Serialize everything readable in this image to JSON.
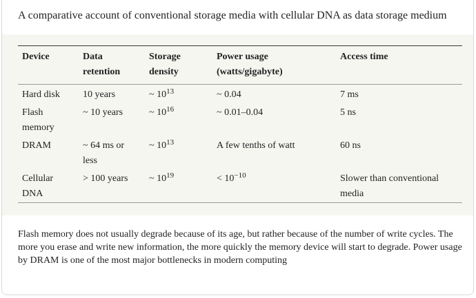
{
  "caption": "A comparative account of conventional storage media with cellular DNA as data storage medium",
  "headers": {
    "device": "Device",
    "retention": "Data retention",
    "density": "Storage density",
    "power": "Power usage (watts/gigabyte)",
    "access": "Access time"
  },
  "rows": [
    {
      "device": "Hard disk",
      "retention": "10 years",
      "density_prefix": "~ 10",
      "density_exp": "13",
      "power_prefix": "~ 0.04",
      "power_exp": "",
      "access": "7 ms"
    },
    {
      "device": "Flash memory",
      "retention": "~ 10 years",
      "density_prefix": "~ 10",
      "density_exp": "16",
      "power_prefix": "~ 0.01–0.04",
      "power_exp": "",
      "access": "5 ns"
    },
    {
      "device": "DRAM",
      "retention": "~ 64 ms or less",
      "density_prefix": "~ 10",
      "density_exp": "13",
      "power_prefix": "A few tenths of watt",
      "power_exp": "",
      "access": "60 ns"
    },
    {
      "device": "Cellular DNA",
      "retention": "> 100 years",
      "density_prefix": "~ 10",
      "density_exp": "19",
      "power_prefix": "< 10",
      "power_exp": "−10",
      "access": "Slower than conventional media"
    }
  ],
  "footnote": "Flash memory does not usually degrade because of its age, but rather because of the number of write cycles. The more you erase and write new information, the more quickly the memory device will start to degrade. Power usage by DRAM is one of the most major bottlenecks in modern computing"
}
